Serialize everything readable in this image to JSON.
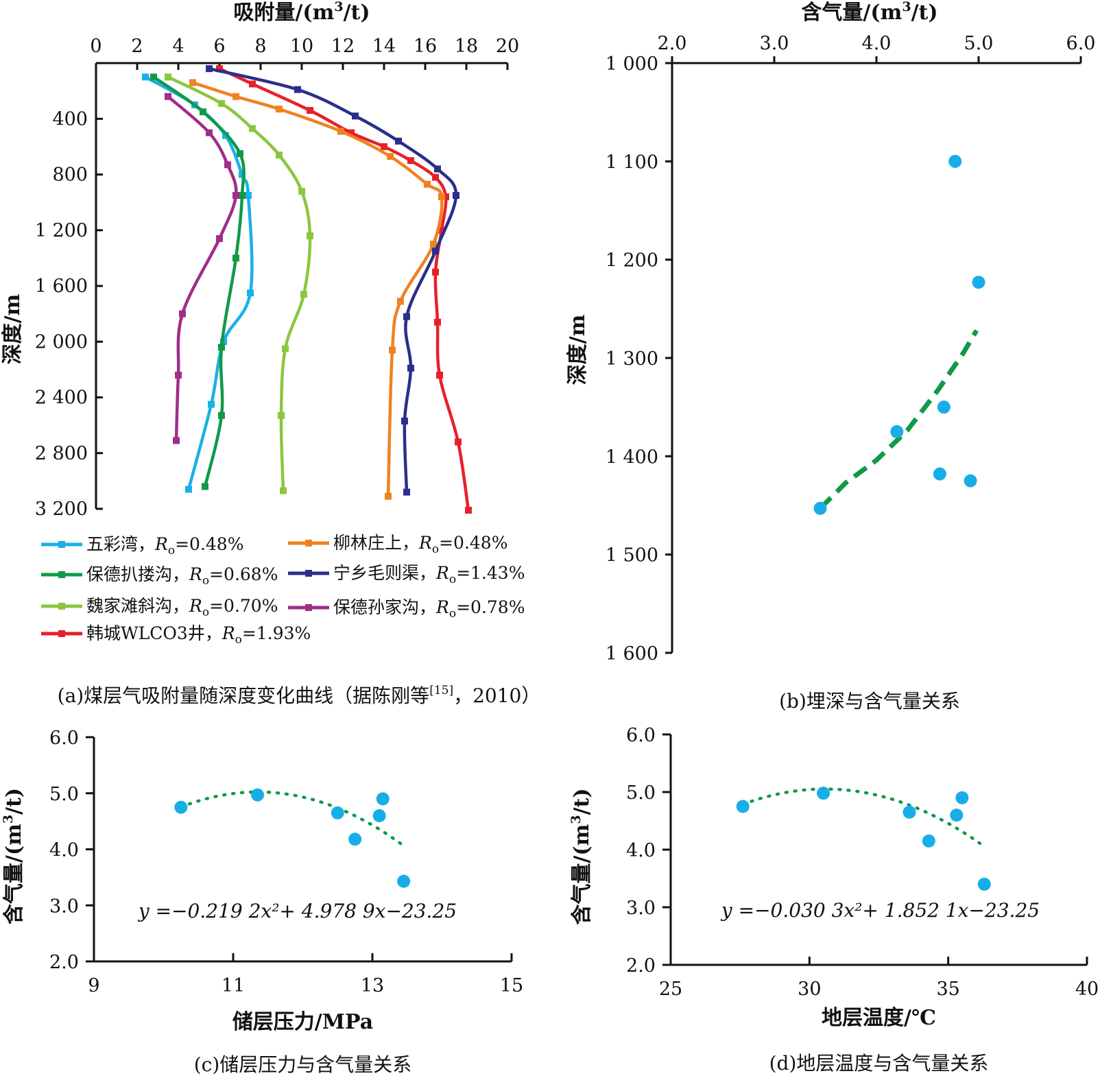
{
  "chart_data": [
    {
      "panel": "a",
      "type": "line",
      "caption": "(a)煤层气吸附量随深度变化曲线（据陈刚等[15]，2010）",
      "xlabel": "吸附量/(m3/t)",
      "ylabel": "深度/m",
      "xlim": [
        0,
        20
      ],
      "ylim": [
        0,
        3200
      ],
      "y_reversed": true,
      "x_axis_position": "top",
      "xticks": [
        "0",
        "2",
        "4",
        "6",
        "8",
        "10",
        "12",
        "14",
        "16",
        "18",
        "20"
      ],
      "yticks": [
        "400",
        "800",
        "1 200",
        "1 600",
        "2 000",
        "2 400",
        "2 800",
        "3 200"
      ],
      "series": [
        {
          "name": "五彩湾，Ro=0.48%",
          "color": "#1ab0e8",
          "x": [
            2.4,
            4.8,
            6.3,
            7.1,
            7.4,
            7.5,
            6.2,
            5.6,
            4.5
          ],
          "y": [
            100,
            300,
            520,
            800,
            950,
            1650,
            2000,
            2450,
            3060
          ]
        },
        {
          "name": "保德扒搂沟，Ro=0.68%",
          "color": "#0f9a48",
          "x": [
            2.8,
            5.2,
            7.0,
            7.1,
            6.8,
            6.1,
            6.1,
            5.3
          ],
          "y": [
            100,
            350,
            650,
            950,
            1400,
            2040,
            2530,
            3040
          ]
        },
        {
          "name": "魏家滩斜沟，Ro=0.70%",
          "color": "#8cc63f",
          "x": [
            3.5,
            6.1,
            7.6,
            8.9,
            10.0,
            10.4,
            10.1,
            9.2,
            9.0,
            9.1
          ],
          "y": [
            100,
            290,
            470,
            660,
            920,
            1240,
            1660,
            2050,
            2530,
            3070
          ]
        },
        {
          "name": "保德孙家沟，Ro=0.78%",
          "color": "#9e2e8a",
          "x": [
            3.5,
            5.5,
            6.4,
            6.8,
            6.0,
            4.2,
            4.0,
            3.9
          ],
          "y": [
            240,
            500,
            730,
            950,
            1260,
            1800,
            2240,
            2710
          ]
        },
        {
          "name": "韩城WLCO3井，Ro=1.93%",
          "color": "#e8202a",
          "x": [
            6.0,
            7.6,
            10.4,
            12.4,
            14.0,
            15.3,
            16.5,
            17.0,
            16.8,
            16.5,
            16.6,
            16.7,
            17.6,
            18.1
          ],
          "y": [
            40,
            150,
            340,
            500,
            600,
            700,
            820,
            960,
            1200,
            1500,
            1860,
            2240,
            2720,
            3210
          ]
        },
        {
          "name": "柳林庄上，Ro=0.48%",
          "color": "#f08220",
          "x": [
            4.7,
            6.8,
            8.9,
            11.9,
            14.3,
            16.1,
            16.8,
            16.4,
            14.8,
            14.4,
            14.2
          ],
          "y": [
            140,
            240,
            330,
            490,
            670,
            870,
            960,
            1300,
            1710,
            2060,
            3110
          ]
        },
        {
          "name": "宁乡毛则渠，Ro=1.43%",
          "color": "#2a2f8c",
          "x": [
            5.5,
            9.8,
            12.6,
            14.7,
            16.6,
            17.5,
            16.5,
            15.1,
            15.3,
            15.0,
            15.1
          ],
          "y": [
            40,
            190,
            380,
            560,
            760,
            950,
            1350,
            1820,
            2190,
            2570,
            3080
          ]
        }
      ],
      "legend_labels": [
        {
          "pre": "五彩湾，",
          "post": "=0.48%"
        },
        {
          "pre": "柳林庄上，",
          "post": "=0.48%"
        },
        {
          "pre": "保德扒搂沟，",
          "post": "=0.68%"
        },
        {
          "pre": "宁乡毛则渠，",
          "post": "=1.43%"
        },
        {
          "pre": "魏家滩斜沟，",
          "post": "=0.70%"
        },
        {
          "pre": "保德孙家沟，",
          "post": "=0.78%"
        },
        {
          "pre": "韩城WLCO3井，",
          "post": "=1.93%"
        }
      ],
      "legend_symbol": {
        "main": "R",
        "sub": "o"
      },
      "legend_placement": "bottom"
    },
    {
      "panel": "b",
      "type": "scatter",
      "caption": "(b)埋深与含气量关系",
      "xlabel": "含气量/(m3/t)",
      "ylabel": "深度/m",
      "xlim": [
        2.0,
        6.0
      ],
      "ylim": [
        1000,
        1600
      ],
      "y_reversed": true,
      "x_axis_position": "top",
      "xticks": [
        "2.0",
        "3.0",
        "4.0",
        "5.0",
        "6.0"
      ],
      "yticks": [
        "1 000",
        "1 100",
        "1 200",
        "1 300",
        "1 400",
        "1 500",
        "1 600"
      ],
      "points": {
        "x": [
          4.77,
          5.0,
          4.66,
          4.2,
          4.62,
          4.92,
          3.45
        ],
        "y": [
          1100,
          1223,
          1350,
          1375,
          1418,
          1425,
          1453
        ]
      },
      "trend": {
        "style": "dashed",
        "color": "#0e9a48",
        "x": [
          3.45,
          3.7,
          4.0,
          4.3,
          4.6,
          4.85,
          4.98
        ],
        "y": [
          1453,
          1427,
          1404,
          1374,
          1333,
          1295,
          1272
        ]
      },
      "point_color": "#17aee8"
    },
    {
      "panel": "c",
      "type": "scatter",
      "caption": "(c)储层压力与含气量关系",
      "xlabel": "储层压力/MPa",
      "ylabel": "含气量/(m3/t)",
      "xlim": [
        9,
        15
      ],
      "ylim": [
        2.0,
        6.0
      ],
      "xticks": [
        "9",
        "11",
        "13",
        "15"
      ],
      "yticks": [
        "2.0",
        "3.0",
        "4.0",
        "5.0",
        "6.0"
      ],
      "points": {
        "x": [
          10.25,
          11.35,
          12.5,
          12.75,
          13.1,
          13.15,
          13.45
        ],
        "y": [
          4.75,
          4.97,
          4.65,
          4.18,
          4.6,
          4.9,
          3.43
        ]
      },
      "trend": {
        "style": "dotted",
        "color": "#0e9a48",
        "equation": {
          "a": -0.2192,
          "b": 4.9789,
          "c": -23.25
        },
        "x_range": [
          10.25,
          13.45
        ]
      },
      "equation_text": "y =−0.219 2x²+ 4.978 9x−23.25",
      "point_color": "#17aee8"
    },
    {
      "panel": "d",
      "type": "scatter",
      "caption": "(d)地层温度与含气量关系",
      "xlabel": "地层温度/℃",
      "ylabel": "含气量/(m3/t)",
      "xlim": [
        25,
        40
      ],
      "ylim": [
        2.0,
        6.0
      ],
      "xticks": [
        "25",
        "30",
        "35",
        "40"
      ],
      "yticks": [
        "2.0",
        "3.0",
        "4.0",
        "5.0",
        "6.0"
      ],
      "points": {
        "x": [
          27.6,
          30.5,
          33.6,
          34.3,
          35.3,
          35.5,
          36.3
        ],
        "y": [
          4.75,
          4.98,
          4.65,
          4.15,
          4.6,
          4.9,
          3.4
        ]
      },
      "trend": {
        "style": "dotted",
        "color": "#0e9a48",
        "equation": {
          "a": -0.0303,
          "b": 1.8521,
          "c": -23.25
        },
        "x_range": [
          27.6,
          36.3
        ]
      },
      "equation_text": "y =−0.030 3x²+ 1.852 1x−23.25",
      "point_color": "#17aee8"
    }
  ]
}
